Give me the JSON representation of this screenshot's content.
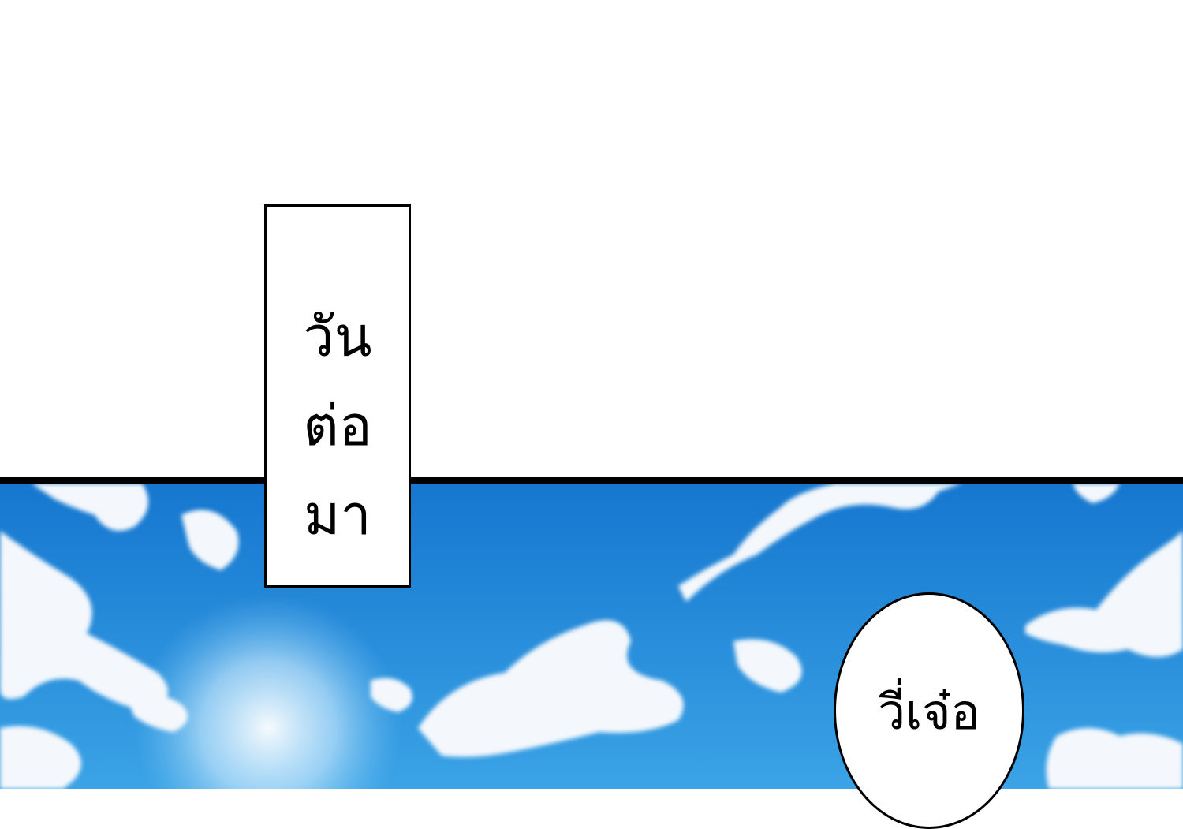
{
  "caption": {
    "lines": [
      "วัน",
      "ต่อ",
      "มา"
    ]
  },
  "speech_bubble": {
    "text": "วี่เจ๋อ"
  },
  "colors": {
    "sky_top": "#1a7fd4",
    "sky_bottom": "#3aa6e8",
    "cloud": "#f4f8fc",
    "ink": "#000000",
    "paper": "#ffffff"
  }
}
